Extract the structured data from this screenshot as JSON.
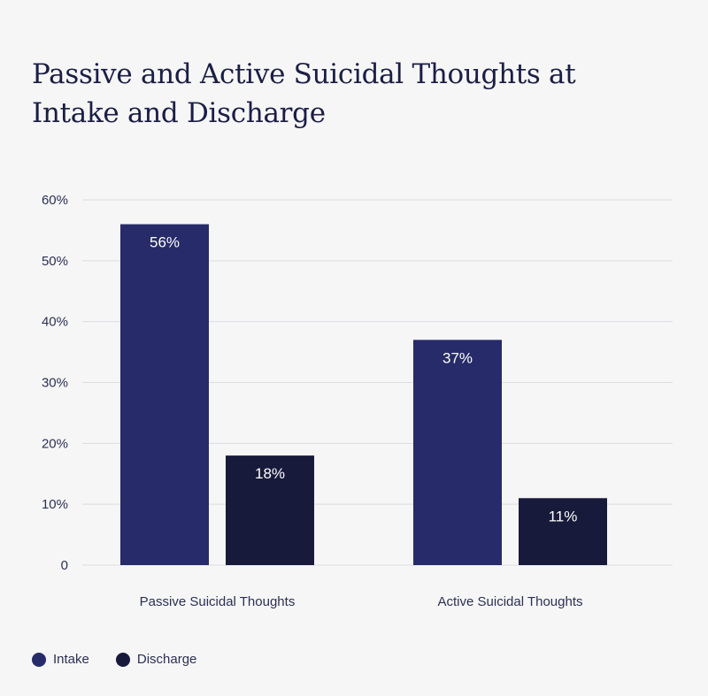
{
  "chart_data": {
    "type": "bar",
    "title": "Passive and Active Suicidal Thoughts at Intake and Discharge",
    "categories": [
      "Passive Suicidal Thoughts",
      "Active Suicidal Thoughts"
    ],
    "series": [
      {
        "name": "Intake",
        "values": [
          56,
          37
        ],
        "labels": [
          "56%",
          "37%"
        ],
        "color": "#272b69"
      },
      {
        "name": "Discharge",
        "values": [
          18,
          11
        ],
        "labels": [
          "18%",
          "11%"
        ],
        "color": "#181a3c"
      }
    ],
    "yticks": [
      0,
      10,
      20,
      30,
      40,
      50,
      60
    ],
    "ytick_labels": [
      "0",
      "10%",
      "20%",
      "30%",
      "40%",
      "50%",
      "60%"
    ],
    "ylim": [
      0,
      60
    ],
    "grid": true,
    "legend": "bottom-left"
  }
}
